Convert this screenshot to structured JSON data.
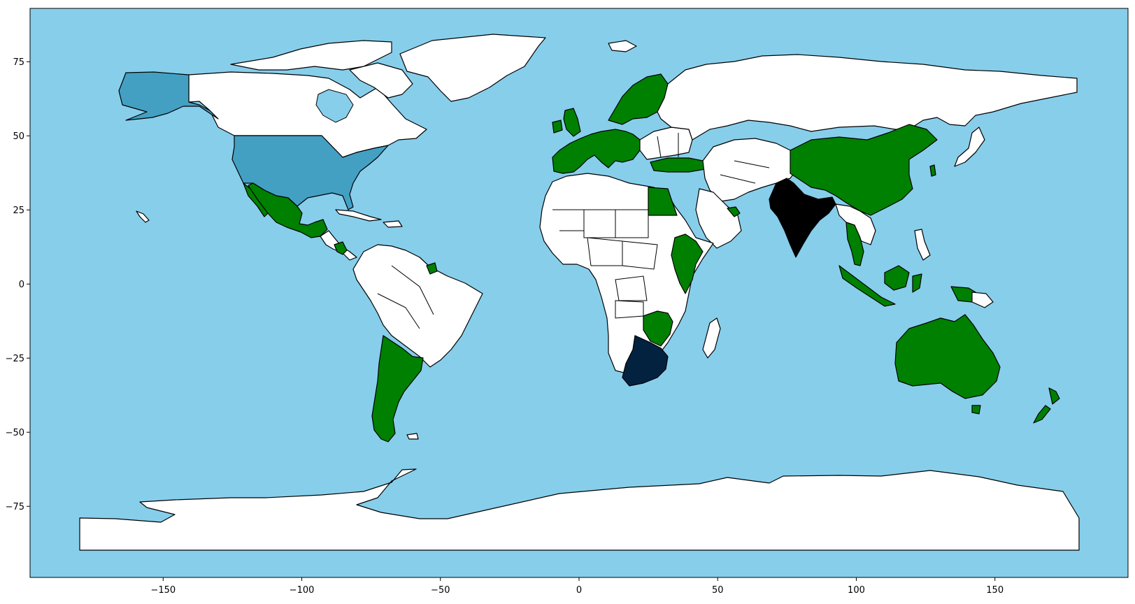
{
  "map": {
    "type": "choropleth-world-map",
    "projection": "plate-carree",
    "xlim": [
      -198,
      198
    ],
    "ylim": [
      -99,
      93
    ],
    "ocean_color": "#87CEEB",
    "default_land_color": "#FFFFFF",
    "border_color": "#000000",
    "x_ticks": [
      -150,
      -100,
      -50,
      0,
      50,
      100,
      150
    ],
    "x_tick_labels": [
      "−150",
      "−100",
      "−50",
      "0",
      "50",
      "100",
      "150"
    ],
    "y_ticks": [
      75,
      50,
      25,
      0,
      -25,
      -50,
      -75
    ],
    "y_tick_labels": [
      "75",
      "50",
      "25",
      "0",
      "−25",
      "−50",
      "−75"
    ],
    "categories": [
      {
        "key": "green",
        "color": "#008000",
        "countries": [
          "Mexico",
          "Guatemala",
          "Nicaragua",
          "French Guiana",
          "Argentina",
          "Chile",
          "United Kingdom",
          "Ireland",
          "France",
          "Spain",
          "Portugal",
          "Germany",
          "Netherlands",
          "Belgium",
          "Denmark",
          "Norway",
          "Sweden",
          "Finland",
          "Austria",
          "Italy",
          "Croatia",
          "Greece",
          "Turkey",
          "Egypt",
          "Ethiopia",
          "Kenya",
          "Zambia",
          "Zimbabwe",
          "Oman",
          "United Arab Emirates",
          "China",
          "Taiwan",
          "Thailand",
          "Malaysia",
          "Indonesia",
          "Australia",
          "New Zealand"
        ]
      },
      {
        "key": "steelblue",
        "color": "#43A0C3",
        "countries": [
          "United States of America"
        ]
      },
      {
        "key": "navy",
        "color": "#03223F",
        "countries": [
          "South Africa"
        ]
      },
      {
        "key": "black",
        "color": "#000000",
        "countries": [
          "India"
        ]
      }
    ]
  }
}
